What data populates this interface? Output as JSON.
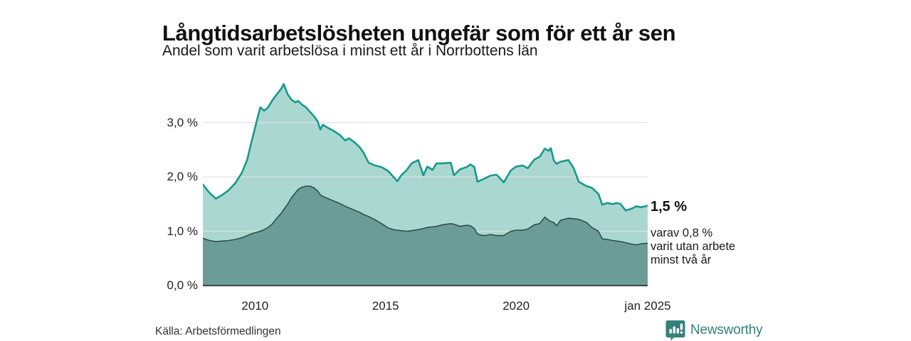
{
  "header": {
    "title": "Långtidsarbetslösheten ungefär som för ett år sen",
    "subtitle": "Andel som varit arbetslösa i minst ett år i Norrbottens län"
  },
  "annotation": {
    "end_value": "1,5 %",
    "detail": "varav 0,8 %\nvarit utan arbete\nminst två år"
  },
  "footer": {
    "source": "Källa: Arbetsförmedlingen",
    "brand": "Newsworthy"
  },
  "colors": {
    "line_total": "#18998c",
    "fill_total": "#aad8d1",
    "line_two_years": "#2e4f4a",
    "fill_two_years": "#6b9d96",
    "grid": "#e0e0e0",
    "axis": "#333333",
    "brand_teal": "#35807a"
  },
  "chart_data": {
    "type": "area",
    "title": "Långtidsarbetslösheten ungefär som för ett år sen",
    "subtitle": "Andel som varit arbetslösa i minst ett år i Norrbottens län",
    "unit": "%",
    "xlim": [
      2008.0,
      2025.04
    ],
    "ylim": [
      0,
      3.95
    ],
    "grid": true,
    "xticks": [
      {
        "value": 2010,
        "label": "2010"
      },
      {
        "value": 2015,
        "label": "2015"
      },
      {
        "value": 2020,
        "label": "2020"
      },
      {
        "value": 2025.04,
        "label": "jan 2025"
      }
    ],
    "yticks": [
      {
        "value": 0,
        "label": "0,0 %"
      },
      {
        "value": 1,
        "label": "1,0 %"
      },
      {
        "value": 2,
        "label": "2,0 %"
      },
      {
        "value": 3,
        "label": "3,0 %"
      }
    ],
    "x": [
      2008.0,
      2008.25,
      2008.5,
      2008.75,
      2009.0,
      2009.25,
      2009.5,
      2009.7,
      2009.85,
      2010.05,
      2010.2,
      2010.35,
      2010.5,
      2010.65,
      2010.8,
      2011.0,
      2011.1,
      2011.25,
      2011.4,
      2011.55,
      2011.65,
      2011.8,
      2011.95,
      2012.1,
      2012.25,
      2012.4,
      2012.5,
      2012.6,
      2012.8,
      2013.0,
      2013.25,
      2013.45,
      2013.6,
      2013.8,
      2014.0,
      2014.15,
      2014.35,
      2014.6,
      2014.85,
      2015.1,
      2015.3,
      2015.45,
      2015.6,
      2015.8,
      2016.0,
      2016.25,
      2016.45,
      2016.6,
      2016.8,
      2016.95,
      2017.2,
      2017.5,
      2017.62,
      2017.85,
      2018.1,
      2018.25,
      2018.4,
      2018.52,
      2018.65,
      2018.8,
      2019.0,
      2019.25,
      2019.53,
      2019.8,
      2020.0,
      2020.25,
      2020.45,
      2020.7,
      2020.9,
      2021.1,
      2021.25,
      2021.33,
      2021.45,
      2021.55,
      2021.7,
      2022.0,
      2022.2,
      2022.4,
      2022.7,
      2022.9,
      2023.15,
      2023.3,
      2023.5,
      2023.7,
      2023.85,
      2024.0,
      2024.2,
      2024.45,
      2024.6,
      2024.8,
      2025.04
    ],
    "series": [
      {
        "name": "Andel som varit arbetslösa i minst ett år",
        "end_label": "1,5 %",
        "values": [
          1.86,
          1.71,
          1.6,
          1.67,
          1.76,
          1.89,
          2.08,
          2.32,
          2.62,
          3.0,
          3.28,
          3.22,
          3.28,
          3.4,
          3.5,
          3.62,
          3.71,
          3.52,
          3.42,
          3.37,
          3.4,
          3.33,
          3.28,
          3.2,
          3.12,
          3.02,
          2.87,
          2.96,
          2.9,
          2.85,
          2.77,
          2.67,
          2.71,
          2.64,
          2.55,
          2.45,
          2.26,
          2.21,
          2.18,
          2.11,
          2.0,
          1.92,
          2.03,
          2.12,
          2.25,
          2.31,
          2.03,
          2.19,
          2.13,
          2.25,
          2.25,
          2.26,
          2.03,
          2.14,
          2.18,
          2.23,
          2.18,
          1.91,
          1.94,
          1.97,
          2.02,
          2.04,
          1.9,
          2.12,
          2.19,
          2.21,
          2.16,
          2.32,
          2.37,
          2.52,
          2.48,
          2.53,
          2.3,
          2.24,
          2.28,
          2.31,
          2.17,
          1.91,
          1.83,
          1.8,
          1.69,
          1.49,
          1.52,
          1.5,
          1.52,
          1.5,
          1.38,
          1.42,
          1.46,
          1.44,
          1.47
        ]
      },
      {
        "name": "varav utan arbete minst två år",
        "end_label": "0,8 %",
        "values": [
          0.87,
          0.83,
          0.81,
          0.82,
          0.83,
          0.85,
          0.88,
          0.92,
          0.95,
          0.98,
          1.0,
          1.03,
          1.07,
          1.13,
          1.22,
          1.33,
          1.4,
          1.5,
          1.62,
          1.71,
          1.77,
          1.81,
          1.83,
          1.83,
          1.8,
          1.74,
          1.67,
          1.64,
          1.6,
          1.56,
          1.51,
          1.46,
          1.43,
          1.39,
          1.35,
          1.31,
          1.27,
          1.21,
          1.14,
          1.06,
          1.03,
          1.02,
          1.01,
          1.0,
          1.01,
          1.03,
          1.05,
          1.07,
          1.08,
          1.09,
          1.12,
          1.14,
          1.13,
          1.09,
          1.11,
          1.1,
          1.05,
          0.95,
          0.93,
          0.92,
          0.94,
          0.92,
          0.92,
          1.0,
          1.02,
          1.02,
          1.04,
          1.12,
          1.14,
          1.26,
          1.2,
          1.18,
          1.16,
          1.1,
          1.2,
          1.24,
          1.23,
          1.22,
          1.16,
          1.07,
          1.0,
          0.86,
          0.85,
          0.83,
          0.82,
          0.81,
          0.79,
          0.76,
          0.75,
          0.77,
          0.78
        ]
      }
    ]
  }
}
